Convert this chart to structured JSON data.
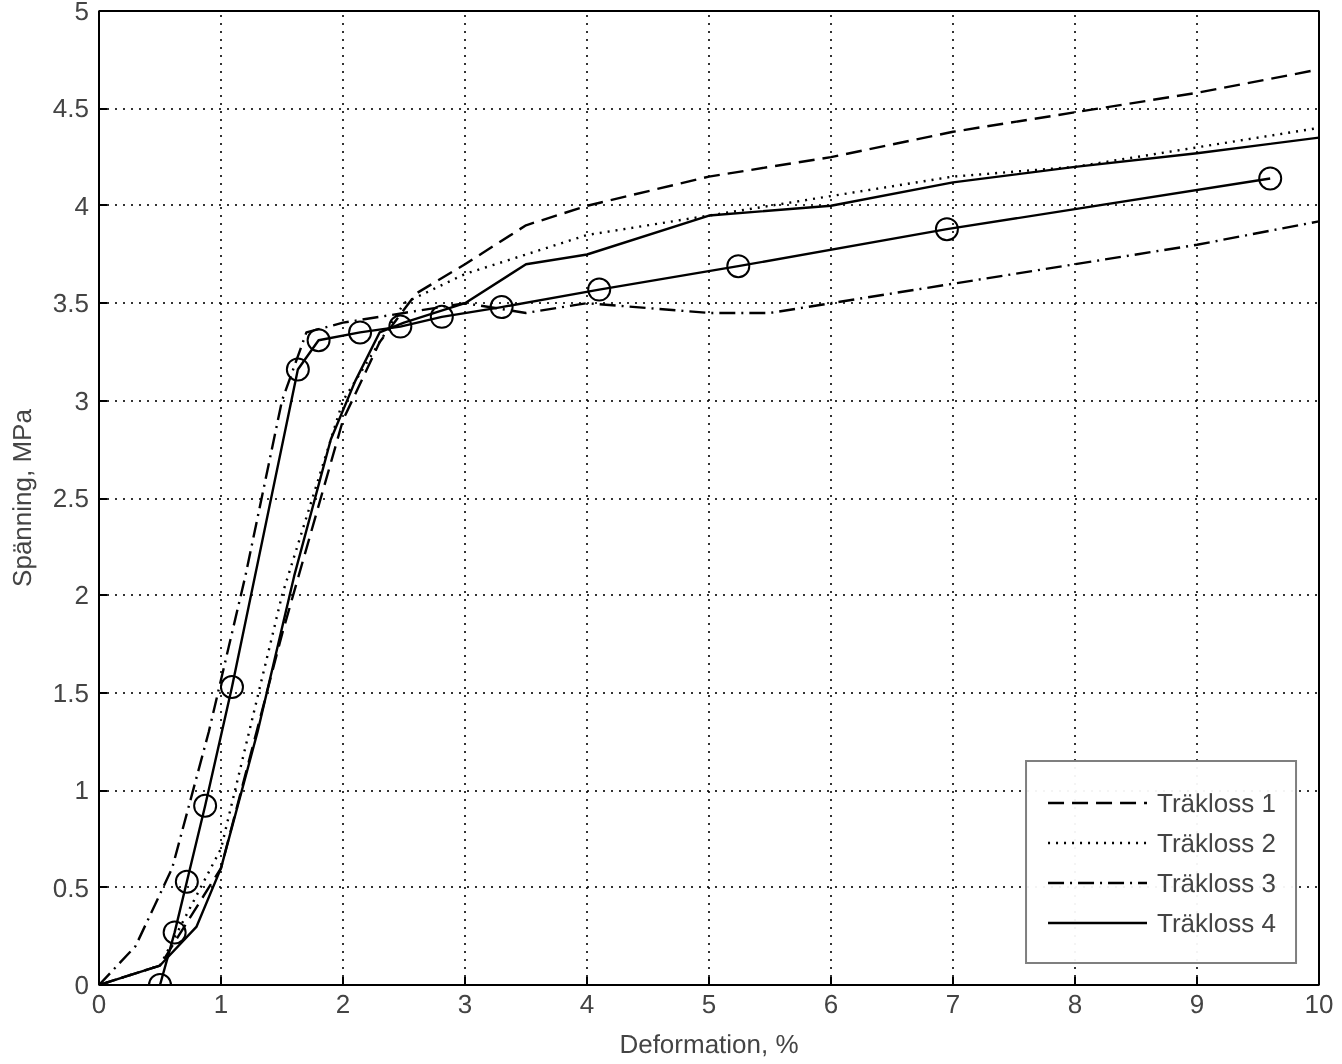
{
  "chart_data": {
    "type": "line",
    "xlabel": "Deformation, %",
    "ylabel": "Spänning, MPa",
    "xlim": [
      0,
      10
    ],
    "ylim": [
      0,
      5
    ],
    "xticks": [
      0,
      1,
      2,
      3,
      4,
      5,
      6,
      7,
      8,
      9,
      10
    ],
    "yticks": [
      0,
      0.5,
      1,
      1.5,
      2,
      2.5,
      3,
      3.5,
      4,
      4.5,
      5
    ],
    "grid": true,
    "legend": "bottom right",
    "marker": "none",
    "series": [
      {
        "name": "Träkloss 1",
        "color": "#000000",
        "line_style": "dashed",
        "x": [
          0,
          0.5,
          1,
          1.5,
          2,
          2.3,
          2.6,
          3,
          3.5,
          4,
          5,
          6,
          7,
          8,
          9,
          10
        ],
        "values": [
          0,
          0.1,
          0.6,
          1.8,
          2.9,
          3.3,
          3.55,
          3.7,
          3.9,
          4.0,
          4.15,
          4.25,
          4.38,
          4.48,
          4.58,
          4.7
        ]
      },
      {
        "name": "Träkloss 2",
        "color": "#000000",
        "line_style": "dotted",
        "x": [
          0,
          0.5,
          1,
          1.5,
          2,
          2.5,
          3,
          4,
          5,
          6,
          7,
          8,
          9,
          10
        ],
        "values": [
          0,
          0.1,
          0.7,
          2.0,
          3.0,
          3.5,
          3.65,
          3.85,
          3.95,
          4.05,
          4.15,
          4.2,
          4.3,
          4.4
        ]
      },
      {
        "name": "Träkloss 3",
        "color": "#000000",
        "line_style": "dashdot",
        "x": [
          0,
          0.3,
          0.6,
          0.9,
          1.2,
          1.5,
          1.7,
          2,
          2.5,
          3,
          3.5,
          4,
          5,
          5.5,
          6,
          7,
          8,
          9,
          10
        ],
        "values": [
          0,
          0.2,
          0.6,
          1.3,
          2.1,
          3.0,
          3.35,
          3.4,
          3.45,
          3.5,
          3.45,
          3.5,
          3.45,
          3.45,
          3.5,
          3.6,
          3.7,
          3.8,
          3.92
        ]
      },
      {
        "name": "Träkloss 4",
        "color": "#000000",
        "line_style": "solid",
        "x": [
          0,
          0.5,
          0.8,
          1,
          1.3,
          1.6,
          1.9,
          2.1,
          2.3,
          2.5,
          3,
          3.5,
          4,
          5,
          6,
          7,
          8,
          9,
          10
        ],
        "values": [
          0,
          0.1,
          0.3,
          0.6,
          1.3,
          2.1,
          2.8,
          3.1,
          3.35,
          3.4,
          3.5,
          3.7,
          3.75,
          3.95,
          4.0,
          4.12,
          4.2,
          4.27,
          4.35
        ]
      },
      {
        "color": "#000000",
        "line_style": "solid",
        "marker": "circle",
        "x": [
          0.5,
          0.62,
          0.72,
          0.87,
          1.09,
          1.63,
          1.8,
          2.14,
          2.47,
          2.81,
          3.3,
          4.1,
          5.24,
          6.95,
          9.6
        ],
        "values": [
          0,
          0.27,
          0.53,
          0.92,
          1.53,
          3.16,
          3.31,
          3.35,
          3.38,
          3.43,
          3.48,
          3.57,
          3.69,
          3.88,
          4.14
        ]
      }
    ]
  }
}
